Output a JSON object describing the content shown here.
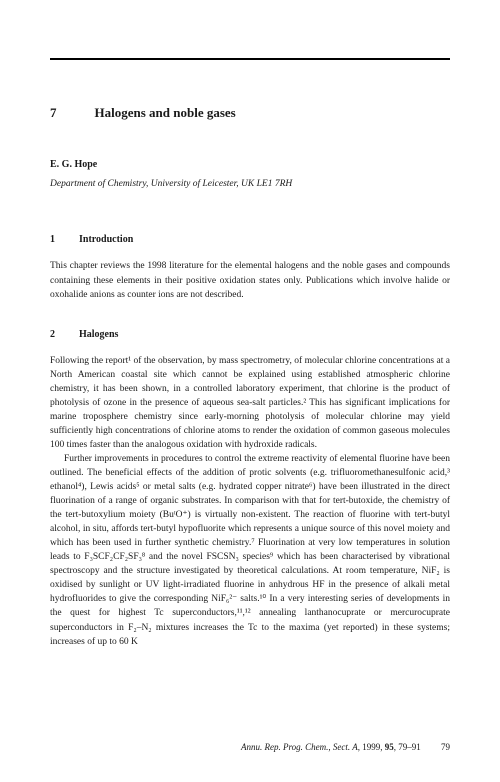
{
  "chapter": {
    "number": "7",
    "title": "Halogens and noble gases"
  },
  "author": "E. G. Hope",
  "affiliation": "Department of Chemistry, University of Leicester, UK LE1 7RH",
  "sections": {
    "intro": {
      "num": "1",
      "title": "Introduction",
      "p1": "This chapter reviews the 1998 literature for the elemental halogens and the noble gases and compounds containing these elements in their positive oxidation states only. Publications which involve halide or oxohalide anions as counter ions are not described."
    },
    "halogens": {
      "num": "2",
      "title": "Halogens",
      "p1": "Following the report¹ of the observation, by mass spectrometry, of molecular chlorine concentrations at a North American coastal site which cannot be explained using established atmospheric chlorine chemistry, it has been shown, in a controlled laboratory experiment, that chlorine is the product of photolysis of ozone in the presence of aqueous sea-salt particles.² This has significant implications for marine troposphere chemistry since early-morning photolysis of molecular chlorine may yield sufficiently high concentrations of chlorine atoms to render the oxidation of common gaseous molecules 100 times faster than the analogous oxidation with hydroxide radicals.",
      "p2": "Further improvements in procedures to control the extreme reactivity of elemental fluorine have been outlined. The beneficial effects of the addition of protic solvents (e.g. trifluoromethanesulfonic acid,³ ethanol⁴), Lewis acids⁵ or metal salts (e.g. hydrated copper nitrate⁶) have been illustrated in the direct fluorination of a range of organic substrates. In comparison with that for tert-butoxide, the chemistry of the tert-butoxylium moiety (BuᵗO⁺) is virtually non-existent. The reaction of fluorine with tert-butyl alcohol, in situ, affords tert-butyl hypofluorite which represents a unique source of this novel moiety and which has been used in further synthetic chemistry.⁷ Fluorination at very low temperatures in solution leads to F₃SCF₂CF₂SF₃⁸ and the novel FSCSN₃ species⁹ which has been characterised by vibrational spectroscopy and the structure investigated by theoretical calculations. At room temperature, NiF₂ is oxidised by sunlight or UV light-irradiated fluorine in anhydrous HF in the presence of alkali metal hydrofluorides to give the corresponding NiF₆²⁻ salts.¹⁰ In a very interesting series of developments in the quest for highest Tc superconductors,¹¹,¹² annealing lanthanocuprate or mercurocuprate superconductors in F₂–N₂ mixtures increases the Tc to the maxima (yet reported) in these systems; increases of up to 60 K"
    }
  },
  "footer": {
    "journal": "Annu. Rep. Prog. Chem., Sect. A,",
    "year": "1999,",
    "vol": "95",
    "pages": ", 79–91",
    "pagenum": "79"
  }
}
